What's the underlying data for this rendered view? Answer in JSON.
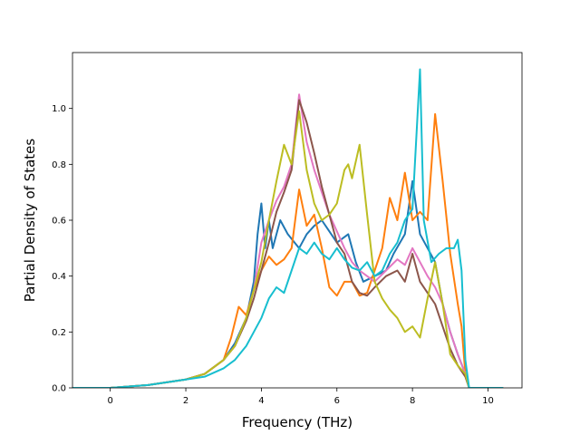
{
  "chart_data": {
    "type": "line",
    "title": "",
    "xlabel": "Frequency (THz)",
    "ylabel": "Partial Density of States",
    "xlim": [
      -1.0,
      10.9
    ],
    "ylim": [
      0.0,
      1.2
    ],
    "xticks": [
      0,
      2,
      4,
      6,
      8,
      10
    ],
    "yticks": [
      0.0,
      0.2,
      0.4,
      0.6,
      0.8,
      1.0
    ],
    "xtick_labels": [
      "0",
      "2",
      "4",
      "6",
      "8",
      "10"
    ],
    "ytick_labels": [
      "0.0",
      "0.2",
      "0.4",
      "0.6",
      "0.8",
      "1.0"
    ],
    "grid": false,
    "legend": "none",
    "series": [
      {
        "color": "#1f77b4",
        "points": [
          [
            -1.0,
            0
          ],
          [
            0,
            0
          ],
          [
            1,
            0.01
          ],
          [
            2,
            0.03
          ],
          [
            2.5,
            0.05
          ],
          [
            3,
            0.1
          ],
          [
            3.3,
            0.16
          ],
          [
            3.6,
            0.25
          ],
          [
            3.8,
            0.38
          ],
          [
            3.9,
            0.55
          ],
          [
            4.0,
            0.66
          ],
          [
            4.1,
            0.5
          ],
          [
            4.2,
            0.6
          ],
          [
            4.3,
            0.5
          ],
          [
            4.5,
            0.6
          ],
          [
            4.7,
            0.55
          ],
          [
            5.0,
            0.5
          ],
          [
            5.2,
            0.55
          ],
          [
            5.4,
            0.58
          ],
          [
            5.6,
            0.6
          ],
          [
            5.8,
            0.56
          ],
          [
            6.0,
            0.52
          ],
          [
            6.3,
            0.55
          ],
          [
            6.5,
            0.45
          ],
          [
            6.7,
            0.38
          ],
          [
            7.0,
            0.4
          ],
          [
            7.3,
            0.42
          ],
          [
            7.5,
            0.48
          ],
          [
            7.8,
            0.55
          ],
          [
            8.0,
            0.74
          ],
          [
            8.2,
            0.55
          ],
          [
            8.4,
            0.5
          ],
          [
            8.6,
            0.45
          ],
          [
            8.8,
            0.3
          ],
          [
            9.0,
            0.2
          ],
          [
            9.2,
            0.12
          ],
          [
            9.4,
            0.05
          ],
          [
            9.5,
            0
          ],
          [
            10.4,
            0
          ]
        ]
      },
      {
        "color": "#ff7f0e",
        "points": [
          [
            -1.0,
            0
          ],
          [
            0,
            0
          ],
          [
            1,
            0.01
          ],
          [
            2,
            0.03
          ],
          [
            2.5,
            0.05
          ],
          [
            3,
            0.1
          ],
          [
            3.2,
            0.18
          ],
          [
            3.4,
            0.29
          ],
          [
            3.6,
            0.26
          ],
          [
            3.8,
            0.35
          ],
          [
            4.0,
            0.42
          ],
          [
            4.2,
            0.47
          ],
          [
            4.4,
            0.44
          ],
          [
            4.6,
            0.46
          ],
          [
            4.8,
            0.5
          ],
          [
            5.0,
            0.71
          ],
          [
            5.2,
            0.58
          ],
          [
            5.4,
            0.62
          ],
          [
            5.6,
            0.5
          ],
          [
            5.8,
            0.36
          ],
          [
            6.0,
            0.33
          ],
          [
            6.2,
            0.38
          ],
          [
            6.4,
            0.38
          ],
          [
            6.6,
            0.33
          ],
          [
            6.8,
            0.34
          ],
          [
            7.0,
            0.42
          ],
          [
            7.2,
            0.5
          ],
          [
            7.4,
            0.68
          ],
          [
            7.6,
            0.6
          ],
          [
            7.8,
            0.77
          ],
          [
            8.0,
            0.6
          ],
          [
            8.2,
            0.63
          ],
          [
            8.4,
            0.6
          ],
          [
            8.6,
            0.98
          ],
          [
            8.8,
            0.74
          ],
          [
            9.0,
            0.48
          ],
          [
            9.2,
            0.3
          ],
          [
            9.3,
            0.22
          ],
          [
            9.4,
            0.05
          ],
          [
            9.5,
            0
          ],
          [
            10.4,
            0
          ]
        ]
      },
      {
        "color": "#e377c2",
        "points": [
          [
            -1.0,
            0
          ],
          [
            0,
            0
          ],
          [
            1,
            0.01
          ],
          [
            2,
            0.03
          ],
          [
            2.5,
            0.05
          ],
          [
            3,
            0.1
          ],
          [
            3.3,
            0.15
          ],
          [
            3.6,
            0.25
          ],
          [
            3.8,
            0.35
          ],
          [
            4.0,
            0.52
          ],
          [
            4.2,
            0.6
          ],
          [
            4.4,
            0.67
          ],
          [
            4.6,
            0.72
          ],
          [
            4.8,
            0.8
          ],
          [
            5.0,
            1.05
          ],
          [
            5.2,
            0.88
          ],
          [
            5.4,
            0.78
          ],
          [
            5.6,
            0.7
          ],
          [
            5.8,
            0.62
          ],
          [
            6.0,
            0.56
          ],
          [
            6.2,
            0.5
          ],
          [
            6.4,
            0.45
          ],
          [
            6.6,
            0.42
          ],
          [
            6.8,
            0.4
          ],
          [
            7.0,
            0.38
          ],
          [
            7.3,
            0.42
          ],
          [
            7.6,
            0.46
          ],
          [
            7.8,
            0.44
          ],
          [
            8.0,
            0.5
          ],
          [
            8.2,
            0.45
          ],
          [
            8.4,
            0.4
          ],
          [
            8.6,
            0.36
          ],
          [
            8.8,
            0.3
          ],
          [
            9.0,
            0.2
          ],
          [
            9.2,
            0.12
          ],
          [
            9.4,
            0.05
          ],
          [
            9.5,
            0
          ],
          [
            10.4,
            0
          ]
        ]
      },
      {
        "color": "#8c564b",
        "points": [
          [
            -1.0,
            0
          ],
          [
            0,
            0
          ],
          [
            1,
            0.01
          ],
          [
            2,
            0.03
          ],
          [
            2.5,
            0.05
          ],
          [
            3,
            0.1
          ],
          [
            3.3,
            0.15
          ],
          [
            3.6,
            0.24
          ],
          [
            3.8,
            0.32
          ],
          [
            4.0,
            0.42
          ],
          [
            4.2,
            0.52
          ],
          [
            4.4,
            0.63
          ],
          [
            4.6,
            0.7
          ],
          [
            4.8,
            0.78
          ],
          [
            5.0,
            1.03
          ],
          [
            5.2,
            0.95
          ],
          [
            5.4,
            0.84
          ],
          [
            5.6,
            0.72
          ],
          [
            5.8,
            0.62
          ],
          [
            6.0,
            0.52
          ],
          [
            6.2,
            0.48
          ],
          [
            6.4,
            0.38
          ],
          [
            6.6,
            0.34
          ],
          [
            6.8,
            0.33
          ],
          [
            7.0,
            0.36
          ],
          [
            7.3,
            0.4
          ],
          [
            7.6,
            0.42
          ],
          [
            7.8,
            0.38
          ],
          [
            8.0,
            0.48
          ],
          [
            8.2,
            0.38
          ],
          [
            8.4,
            0.34
          ],
          [
            8.6,
            0.3
          ],
          [
            8.8,
            0.22
          ],
          [
            9.0,
            0.14
          ],
          [
            9.2,
            0.08
          ],
          [
            9.4,
            0.04
          ],
          [
            9.5,
            0
          ],
          [
            10.4,
            0
          ]
        ]
      },
      {
        "color": "#bcbd22",
        "points": [
          [
            -1.0,
            0
          ],
          [
            0,
            0
          ],
          [
            1,
            0.01
          ],
          [
            2,
            0.03
          ],
          [
            2.5,
            0.05
          ],
          [
            3,
            0.1
          ],
          [
            3.3,
            0.15
          ],
          [
            3.6,
            0.25
          ],
          [
            3.8,
            0.35
          ],
          [
            4.0,
            0.45
          ],
          [
            4.2,
            0.6
          ],
          [
            4.4,
            0.74
          ],
          [
            4.6,
            0.87
          ],
          [
            4.8,
            0.8
          ],
          [
            5.0,
            0.99
          ],
          [
            5.2,
            0.78
          ],
          [
            5.4,
            0.66
          ],
          [
            5.6,
            0.6
          ],
          [
            5.8,
            0.62
          ],
          [
            6.0,
            0.66
          ],
          [
            6.2,
            0.78
          ],
          [
            6.3,
            0.8
          ],
          [
            6.4,
            0.75
          ],
          [
            6.6,
            0.87
          ],
          [
            6.8,
            0.62
          ],
          [
            7.0,
            0.38
          ],
          [
            7.2,
            0.32
          ],
          [
            7.4,
            0.28
          ],
          [
            7.6,
            0.25
          ],
          [
            7.8,
            0.2
          ],
          [
            8.0,
            0.22
          ],
          [
            8.2,
            0.18
          ],
          [
            8.4,
            0.32
          ],
          [
            8.6,
            0.45
          ],
          [
            8.8,
            0.3
          ],
          [
            9.0,
            0.12
          ],
          [
            9.2,
            0.08
          ],
          [
            9.4,
            0.05
          ],
          [
            9.5,
            0
          ],
          [
            10.4,
            0
          ]
        ]
      },
      {
        "color": "#17becf",
        "points": [
          [
            -1.0,
            0
          ],
          [
            0,
            0
          ],
          [
            1,
            0.01
          ],
          [
            2,
            0.03
          ],
          [
            2.5,
            0.04
          ],
          [
            3,
            0.07
          ],
          [
            3.3,
            0.1
          ],
          [
            3.6,
            0.15
          ],
          [
            3.8,
            0.2
          ],
          [
            4.0,
            0.25
          ],
          [
            4.2,
            0.32
          ],
          [
            4.4,
            0.36
          ],
          [
            4.6,
            0.34
          ],
          [
            4.8,
            0.42
          ],
          [
            5.0,
            0.5
          ],
          [
            5.2,
            0.48
          ],
          [
            5.4,
            0.52
          ],
          [
            5.6,
            0.48
          ],
          [
            5.8,
            0.46
          ],
          [
            6.0,
            0.5
          ],
          [
            6.2,
            0.46
          ],
          [
            6.4,
            0.43
          ],
          [
            6.6,
            0.42
          ],
          [
            6.8,
            0.45
          ],
          [
            7.0,
            0.4
          ],
          [
            7.2,
            0.42
          ],
          [
            7.4,
            0.48
          ],
          [
            7.6,
            0.52
          ],
          [
            7.8,
            0.6
          ],
          [
            8.0,
            0.64
          ],
          [
            8.2,
            1.14
          ],
          [
            8.3,
            0.6
          ],
          [
            8.5,
            0.45
          ],
          [
            8.7,
            0.48
          ],
          [
            8.9,
            0.5
          ],
          [
            9.1,
            0.5
          ],
          [
            9.2,
            0.53
          ],
          [
            9.3,
            0.42
          ],
          [
            9.4,
            0.1
          ],
          [
            9.5,
            0
          ],
          [
            10.4,
            0
          ]
        ]
      }
    ]
  }
}
